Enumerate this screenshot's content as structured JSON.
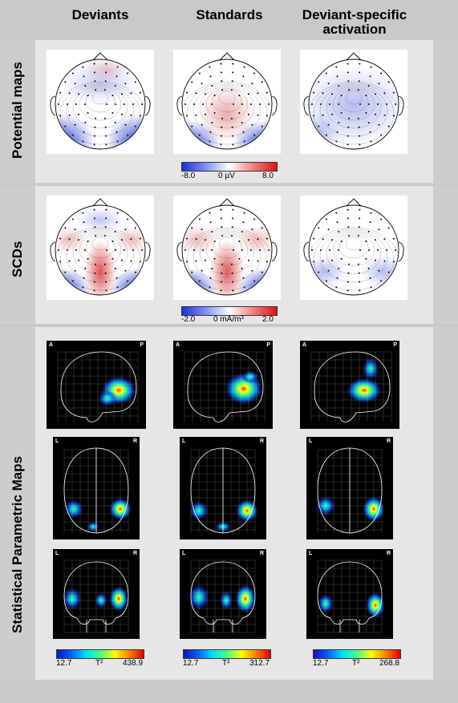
{
  "columns": [
    "Deviants",
    "Standards",
    "Deviant-specific\nactivation"
  ],
  "rows": {
    "potential": "Potential maps",
    "scd": "SCDs",
    "spm": "Statistical Parametric Maps"
  },
  "potential_colorbar": {
    "min": "-8.0",
    "unit": "0 µV",
    "max": "8.0"
  },
  "scd_colorbar": {
    "min": "-2.0",
    "unit": "0 mA/m³",
    "max": "2.0"
  },
  "spm_colorbars": [
    {
      "min": "12.7",
      "unit": "T²",
      "max": "438.9"
    },
    {
      "min": "12.7",
      "unit": "T²",
      "max": "312.7"
    },
    {
      "min": "12.7",
      "unit": "T²",
      "max": "268.8"
    }
  ],
  "spm_corner_labels": {
    "sagittal": [
      "A",
      "P"
    ],
    "axial": [
      "L",
      "R"
    ],
    "coronal": [
      "L",
      "R"
    ]
  },
  "colors": {
    "positive": "#d94040",
    "negative": "#2a3fd8",
    "spm_hot": "#ff2000"
  }
}
